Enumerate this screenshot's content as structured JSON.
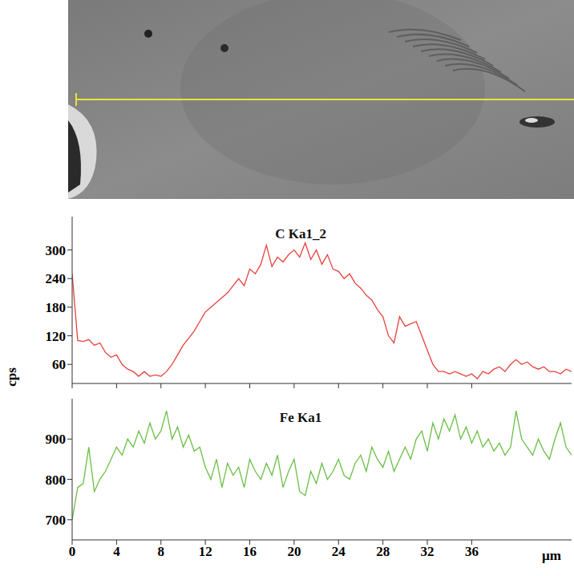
{
  "y_label": "cps",
  "x_label": "µm",
  "chart_data": [
    {
      "type": "line",
      "title": "C Ka1_2",
      "color": "#e8413c",
      "tick_labels": "y",
      "xlim": [
        0,
        45
      ],
      "xticks": [
        0,
        4,
        8,
        12,
        16,
        20,
        24,
        28,
        32,
        36
      ],
      "ylim": [
        20,
        370
      ],
      "yticks": [
        60,
        120,
        180,
        240,
        300
      ],
      "x": [
        0,
        0.5,
        1,
        1.5,
        2,
        2.5,
        3,
        3.5,
        4,
        4.5,
        5,
        5.5,
        6,
        6.5,
        7,
        7.5,
        8,
        8.5,
        9,
        9.5,
        10,
        10.5,
        11,
        11.5,
        12,
        12.5,
        13,
        13.5,
        14,
        14.5,
        15,
        15.5,
        16,
        16.5,
        17,
        17.5,
        18,
        18.5,
        19,
        19.5,
        20,
        20.5,
        21,
        21.5,
        22,
        22.5,
        23,
        23.5,
        24,
        24.5,
        25,
        25.5,
        26,
        26.5,
        27,
        27.5,
        28,
        28.5,
        29,
        29.5,
        30,
        30.5,
        31,
        31.5,
        32,
        32.5,
        33,
        33.5,
        34,
        34.5,
        35,
        35.5,
        36,
        36.5,
        37,
        37.5,
        38,
        38.5,
        39,
        39.5,
        40,
        40.5,
        41,
        41.5,
        42,
        42.5,
        43,
        43.5,
        44,
        44.5,
        45
      ],
      "values": [
        250,
        110,
        108,
        112,
        100,
        105,
        85,
        75,
        80,
        60,
        50,
        45,
        35,
        45,
        35,
        38,
        35,
        45,
        60,
        80,
        100,
        115,
        130,
        150,
        170,
        180,
        190,
        200,
        210,
        225,
        240,
        225,
        260,
        250,
        270,
        310,
        265,
        285,
        275,
        290,
        300,
        285,
        315,
        280,
        300,
        270,
        290,
        260,
        255,
        240,
        250,
        230,
        220,
        205,
        195,
        175,
        160,
        120,
        105,
        160,
        140,
        145,
        150,
        120,
        90,
        60,
        45,
        45,
        40,
        45,
        40,
        35,
        40,
        30,
        45,
        40,
        50,
        55,
        45,
        60,
        70,
        60,
        65,
        55,
        50,
        55,
        45,
        45,
        40,
        50,
        45
      ]
    },
    {
      "type": "line",
      "title": "Fe Ka1",
      "color": "#6abf45",
      "xlim": [
        0,
        45
      ],
      "xticks": [
        0,
        4,
        8,
        12,
        16,
        20,
        24,
        28,
        32,
        36
      ],
      "ylim": [
        650,
        1000
      ],
      "yticks": [
        700,
        800,
        900
      ],
      "x": [
        0,
        0.5,
        1,
        1.5,
        2,
        2.5,
        3,
        3.5,
        4,
        4.5,
        5,
        5.5,
        6,
        6.5,
        7,
        7.5,
        8,
        8.5,
        9,
        9.5,
        10,
        10.5,
        11,
        11.5,
        12,
        12.5,
        13,
        13.5,
        14,
        14.5,
        15,
        15.5,
        16,
        16.5,
        17,
        17.5,
        18,
        18.5,
        19,
        19.5,
        20,
        20.5,
        21,
        21.5,
        22,
        22.5,
        23,
        23.5,
        24,
        24.5,
        25,
        25.5,
        26,
        26.5,
        27,
        27.5,
        28,
        28.5,
        29,
        29.5,
        30,
        30.5,
        31,
        31.5,
        32,
        32.5,
        33,
        33.5,
        34,
        34.5,
        35,
        35.5,
        36,
        36.5,
        37,
        37.5,
        38,
        38.5,
        39,
        39.5,
        40,
        40.5,
        41,
        41.5,
        42,
        42.5,
        43,
        43.5,
        44,
        44.5,
        45
      ],
      "values": [
        700,
        780,
        790,
        880,
        770,
        800,
        820,
        850,
        880,
        860,
        900,
        880,
        920,
        890,
        940,
        900,
        920,
        970,
        900,
        930,
        880,
        910,
        870,
        880,
        830,
        800,
        850,
        780,
        840,
        810,
        830,
        780,
        850,
        820,
        800,
        840,
        810,
        860,
        780,
        820,
        850,
        770,
        760,
        820,
        790,
        840,
        800,
        820,
        850,
        810,
        800,
        840,
        860,
        820,
        880,
        850,
        830,
        870,
        820,
        850,
        880,
        850,
        900,
        920,
        870,
        940,
        900,
        950,
        920,
        960,
        900,
        930,
        890,
        920,
        880,
        900,
        870,
        890,
        860,
        880,
        970,
        900,
        880,
        860,
        900,
        870,
        850,
        900,
        940,
        880,
        860
      ]
    }
  ]
}
